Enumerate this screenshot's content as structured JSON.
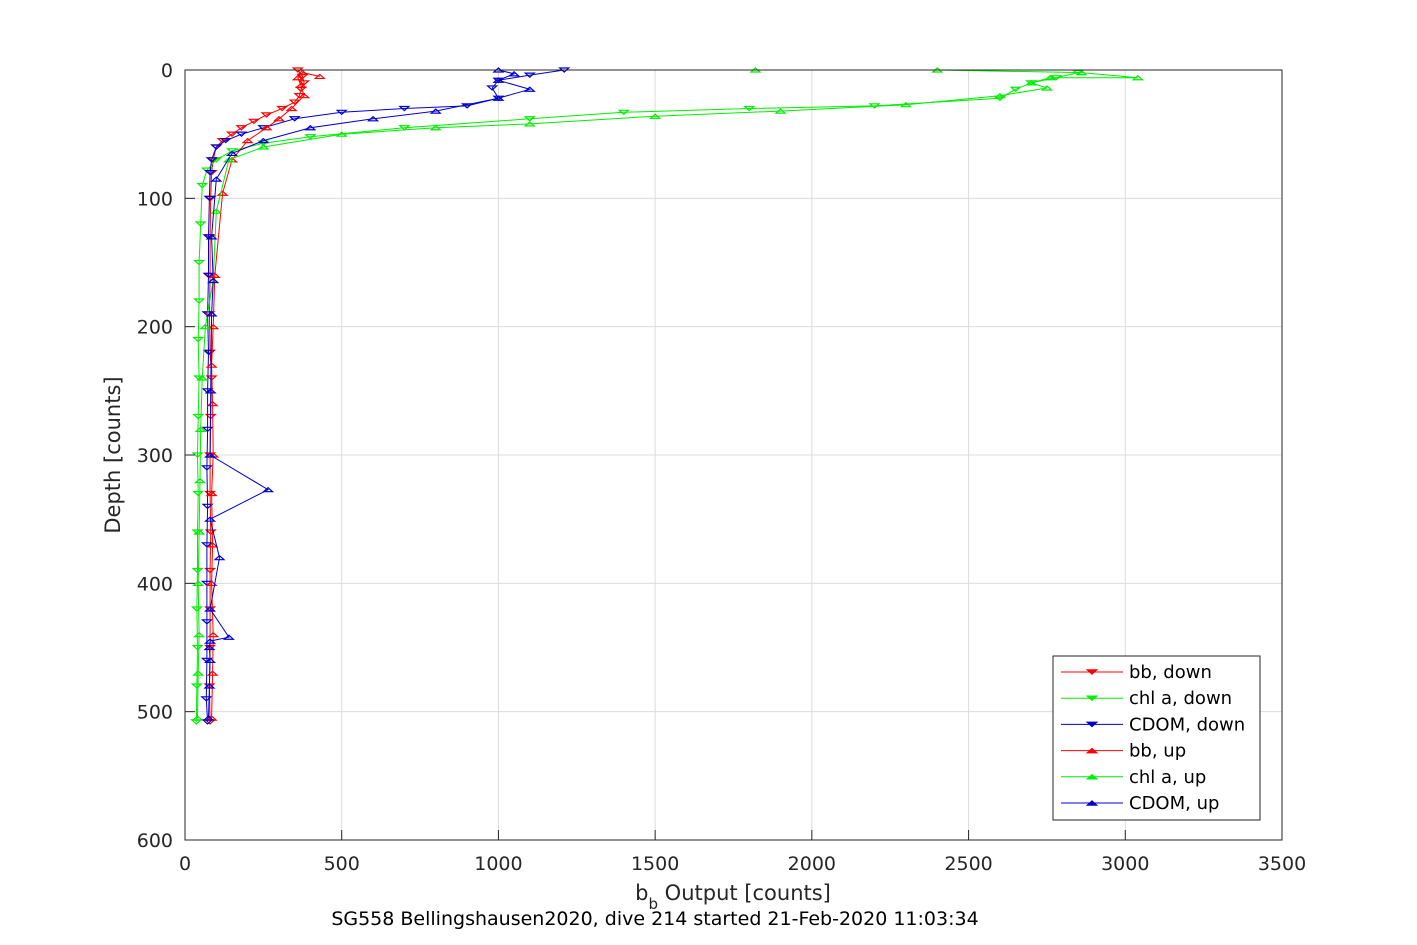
{
  "chart_data": {
    "type": "line",
    "xlabel_main": "b",
    "xlabel_sub": "b",
    "xlabel_rest": " Output [counts]",
    "ylabel": "Depth [counts]",
    "caption": "SG558 Bellingshausen2020, dive 214 started 21-Feb-2020 11:03:34",
    "xlim": [
      0,
      3500
    ],
    "ylim": [
      0,
      600
    ],
    "y_reversed": true,
    "grid": true,
    "legend_position": "bottom-right",
    "x_ticks": [
      "0",
      "500",
      "1000",
      "1500",
      "2000",
      "2500",
      "3000",
      "3500"
    ],
    "y_ticks": [
      "0",
      "100",
      "200",
      "300",
      "400",
      "500",
      "600"
    ],
    "colors": {
      "red": "#ff0000",
      "green": "#00ee00",
      "blue": "#0000cc"
    },
    "series": [
      {
        "name": "bb, down",
        "color": "#ff0000",
        "marker": "triangle-down",
        "x": [
          360,
          375,
          380,
          370,
          365,
          350,
          310,
          260,
          220,
          180,
          150,
          120,
          100,
          90,
          85,
          82,
          80,
          80,
          78,
          80,
          85,
          82,
          80,
          80,
          82,
          80,
          80,
          80,
          78,
          80
        ],
        "y": [
          0,
          5,
          10,
          15,
          20,
          25,
          30,
          35,
          40,
          45,
          50,
          55,
          60,
          70,
          80,
          100,
          130,
          160,
          190,
          220,
          240,
          270,
          300,
          330,
          360,
          390,
          420,
          450,
          480,
          508
        ]
      },
      {
        "name": "chl a, down",
        "color": "#00ee00",
        "marker": "triangle-down",
        "x": [
          2850,
          2780,
          2700,
          2650,
          2600,
          2200,
          1800,
          1400,
          1100,
          700,
          400,
          250,
          150,
          100,
          70,
          55,
          50,
          45,
          45,
          42,
          45,
          42,
          40,
          42,
          40,
          40,
          38,
          40,
          38,
          36
        ],
        "y": [
          2,
          6,
          10,
          15,
          22,
          28,
          30,
          33,
          38,
          45,
          52,
          57,
          63,
          70,
          78,
          90,
          120,
          150,
          180,
          210,
          240,
          270,
          300,
          330,
          360,
          390,
          420,
          450,
          480,
          508
        ]
      },
      {
        "name": "CDOM, down",
        "color": "#0000cc",
        "marker": "triangle-down",
        "x": [
          1210,
          1100,
          1000,
          980,
          1000,
          900,
          700,
          500,
          350,
          250,
          180,
          130,
          100,
          85,
          80,
          78,
          75,
          75,
          72,
          75,
          72,
          72,
          70,
          72,
          70,
          70,
          70,
          70,
          68,
          72
        ],
        "y": [
          0,
          4,
          8,
          14,
          22,
          28,
          30,
          33,
          38,
          45,
          50,
          55,
          60,
          70,
          80,
          100,
          130,
          160,
          190,
          220,
          250,
          280,
          310,
          340,
          370,
          400,
          430,
          460,
          490,
          508
        ]
      },
      {
        "name": "bb, up",
        "color": "#ff0000",
        "marker": "triangle-up",
        "x": [
          85,
          88,
          90,
          85,
          88,
          85,
          90,
          88,
          85,
          90,
          95,
          120,
          150,
          200,
          260,
          300,
          340,
          380,
          370,
          360,
          375,
          430
        ],
        "y": [
          505,
          470,
          440,
          400,
          370,
          330,
          300,
          260,
          230,
          200,
          160,
          96,
          70,
          55,
          45,
          38,
          30,
          20,
          12,
          6,
          2,
          5
        ]
      },
      {
        "name": "chl a, up",
        "color": "#00ee00",
        "marker": "triangle-up",
        "x": [
          40,
          42,
          45,
          42,
          45,
          48,
          50,
          55,
          65,
          90,
          100,
          140,
          250,
          500,
          800,
          1100,
          1500,
          1900,
          2300,
          2600,
          2750,
          2700,
          2760,
          3040,
          2860,
          2400,
          1820
        ],
        "y": [
          505,
          470,
          440,
          400,
          360,
          320,
          280,
          240,
          200,
          164,
          110,
          70,
          60,
          50,
          45,
          42,
          36,
          32,
          27,
          20,
          14,
          10,
          6,
          6,
          2,
          0,
          0
        ]
      },
      {
        "name": "CDOM, up",
        "color": "#0000cc",
        "marker": "triangle-up",
        "x": [
          75,
          78,
          80,
          78,
          80,
          140,
          80,
          110,
          80,
          265,
          80,
          82,
          85,
          90,
          85,
          100,
          150,
          250,
          400,
          600,
          800,
          1000,
          1100,
          1000,
          1050,
          1000
        ],
        "y": [
          505,
          480,
          460,
          450,
          445,
          442,
          420,
          380,
          350,
          327,
          300,
          250,
          190,
          164,
          130,
          85,
          65,
          55,
          45,
          38,
          32,
          22,
          15,
          8,
          3,
          0
        ]
      }
    ]
  }
}
